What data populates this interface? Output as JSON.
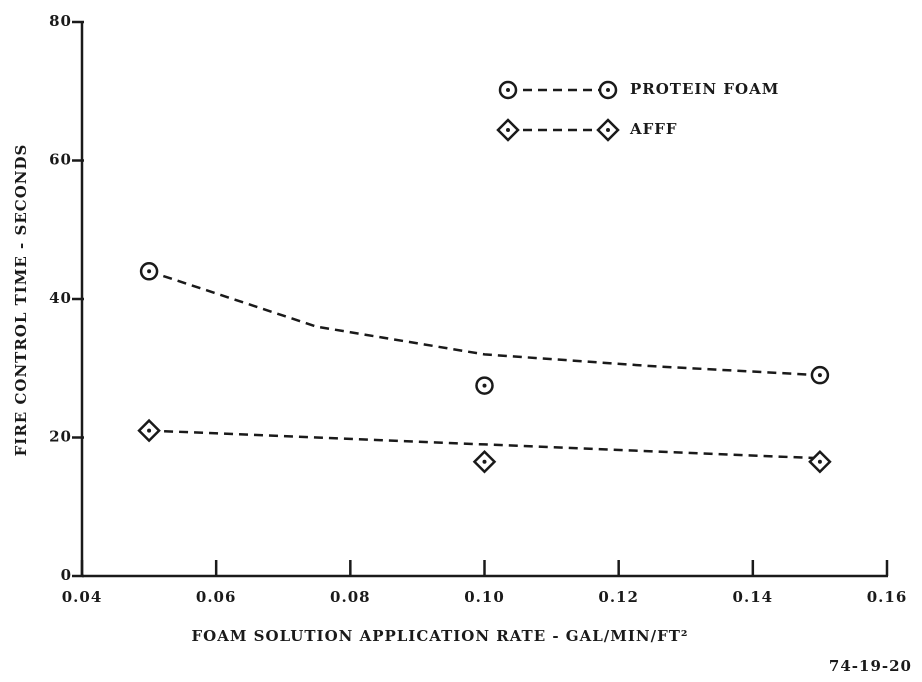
{
  "chart_data": {
    "type": "scatter",
    "y_label": "FIRE CONTROL TIME - SECONDS",
    "x_label": "FOAM SOLUTION APPLICATION RATE - GAL/MIN/FT²",
    "figure_number": "74-19-20",
    "xlim": [
      0.04,
      0.16
    ],
    "xticks": [
      {
        "value": 0.04,
        "label": "0.04"
      },
      {
        "value": 0.06,
        "label": "0.06"
      },
      {
        "value": 0.08,
        "label": "0.08"
      },
      {
        "value": 0.1,
        "label": "0.10"
      },
      {
        "value": 0.12,
        "label": "0.12"
      },
      {
        "value": 0.14,
        "label": "0.14"
      },
      {
        "value": 0.16,
        "label": "0.16"
      }
    ],
    "ylim": [
      0,
      80
    ],
    "yticks": [
      0,
      20,
      40,
      60,
      80
    ],
    "x": [
      0.05,
      0.1,
      0.15
    ],
    "trend_x": [
      0.05,
      0.075,
      0.1,
      0.125,
      0.15
    ],
    "legend": "upper right",
    "series": [
      {
        "name": "PROTEIN FOAM",
        "marker": "circle",
        "color": "#1a1a1a",
        "values": [
          44,
          27.5,
          29
        ],
        "trend": [
          44,
          36,
          32,
          30.3,
          29
        ]
      },
      {
        "name": "AFFF",
        "marker": "diamond",
        "color": "#1a1a1a",
        "values": [
          21,
          16.5,
          16.5
        ],
        "trend": [
          21,
          20,
          19,
          18,
          17
        ]
      }
    ]
  }
}
